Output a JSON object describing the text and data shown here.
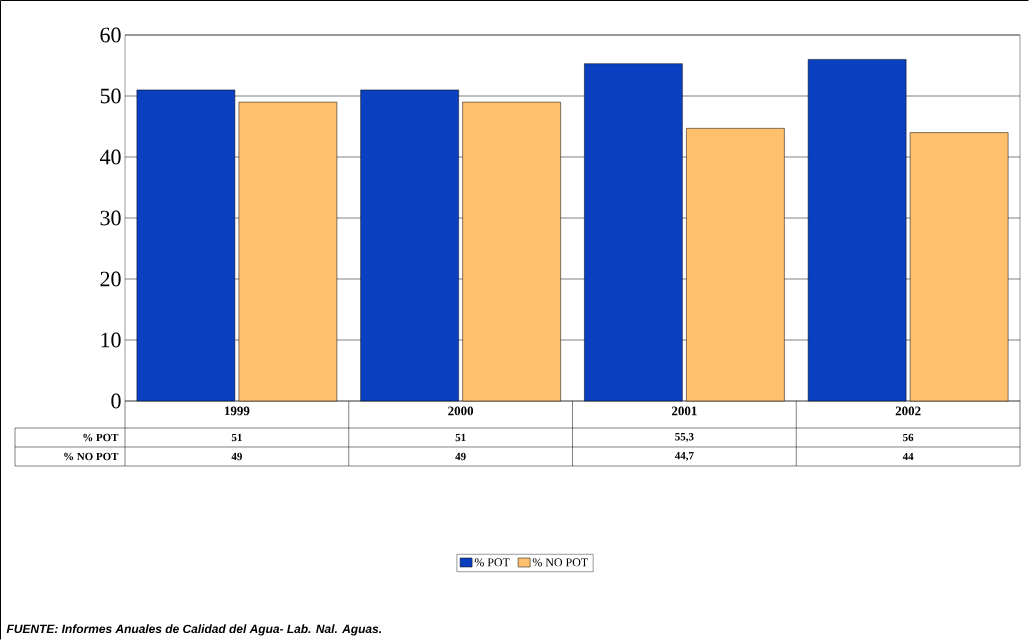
{
  "chart_data": {
    "type": "bar",
    "categories": [
      "1999",
      "2000",
      "2001",
      "2002"
    ],
    "series": [
      {
        "name": "% POT",
        "color": "#0a40c0",
        "values": [
          51,
          51,
          55.3,
          56
        ],
        "value_labels": [
          "51",
          "51",
          "55,3",
          "56"
        ]
      },
      {
        "name": "% NO POT",
        "color": "#ffc06e",
        "values": [
          49,
          49,
          44.7,
          44
        ],
        "value_labels": [
          "49",
          "49",
          "44,7",
          "44"
        ]
      }
    ],
    "ylim": [
      0,
      60
    ],
    "yticks": [
      0,
      10,
      20,
      30,
      40,
      50,
      60
    ],
    "grid": "y",
    "legend": "bottom",
    "annotations": [
      "FUENTE: Informes Anuales de Calidad del Agua- Lab. Nal. Aguas."
    ]
  }
}
